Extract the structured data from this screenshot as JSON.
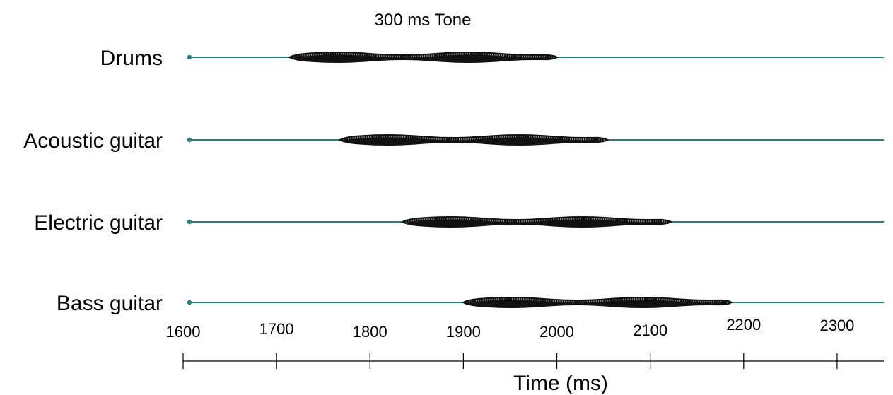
{
  "chart_data": {
    "type": "waveform",
    "title": "300 ms Tone",
    "xlabel": "Time (ms)",
    "ylabel": "",
    "xlim": [
      1600,
      2350
    ],
    "x_ticks": [
      1600,
      1700,
      1800,
      1900,
      2000,
      2100,
      2200,
      2300
    ],
    "line_color": "#2a7f7f",
    "burst_color": "#111111",
    "series": [
      {
        "name": "Drums",
        "tone_start": 1712,
        "tone_end": 2002
      },
      {
        "name": "Acoustic guitar",
        "tone_start": 1766,
        "tone_end": 2056
      },
      {
        "name": "Electric guitar",
        "tone_start": 1833,
        "tone_end": 2124
      },
      {
        "name": "Bass guitar",
        "tone_start": 1898,
        "tone_end": 2189
      }
    ]
  }
}
